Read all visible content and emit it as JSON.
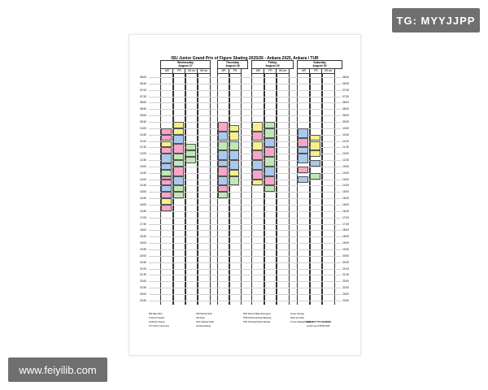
{
  "watermarks": {
    "tg": "TG: MYYJJPP",
    "web": "www.feiyilib.com"
  },
  "document": {
    "title": "ISU Junior Grand Prix of Figure Skating 2025/26 - Ankara 2025, Ankara / TUR",
    "days": [
      {
        "name": "Wednesday",
        "date": "August 27"
      },
      {
        "name": "Thursday",
        "date": "August 28"
      },
      {
        "name": "Friday",
        "date": "August 29"
      },
      {
        "name": "Saturday",
        "date": "August 30"
      }
    ],
    "subheads": [
      "MR",
      "PR",
      "Off-Ice",
      "Off-Ice",
      "MR",
      "PR",
      "MR",
      "PR",
      "Off-Ice",
      "MR",
      "PR",
      "Off-Ice"
    ],
    "times": [
      "06:00",
      "06:30",
      "07:00",
      "07:30",
      "08:00",
      "08:30",
      "09:00",
      "09:30",
      "10:00",
      "10:30",
      "11:00",
      "11:30",
      "12:00",
      "12:30",
      "13:00",
      "13:30",
      "14:00",
      "14:30",
      "15:00",
      "15:30",
      "16:00",
      "16:30",
      "17:00",
      "17:30",
      "18:00",
      "18:30",
      "19:00",
      "19:30",
      "20:00",
      "20:30",
      "21:00",
      "21:30",
      "22:00",
      "22:30",
      "23:00",
      "23:30"
    ],
    "legend": [
      {
        "k": "MR",
        "v": "Main Rink"
      },
      {
        "k": "PR",
        "v": "Practice Rink"
      },
      {
        "k": "RTD",
        "v": "Round Table Discussion"
      },
      {
        "k": "",
        "v": "Group Change"
      },
      {
        "k": "S",
        "v": "Short Program"
      },
      {
        "k": "OD",
        "v": "Draw"
      },
      {
        "k": "TPM",
        "v": "Technical Panel Meeting"
      },
      {
        "k": "",
        "v": "Warmup Order"
      },
      {
        "k": "R",
        "v": "Rhythm Dance"
      },
      {
        "k": "STO",
        "v": "Starting Order"
      },
      {
        "k": "TPR",
        "v": "Technical Panel Review"
      },
      {
        "k": "F",
        "v": "Free Skating/Dance"
      },
      {
        "k": "VC",
        "v": "Victory Ceremony"
      },
      {
        "k": "",
        "v": "Ice Resurfacing"
      }
    ],
    "footer_note": "SUBJECT TO CHANGES",
    "footer_version": "version as of 08.08.2025"
  }
}
